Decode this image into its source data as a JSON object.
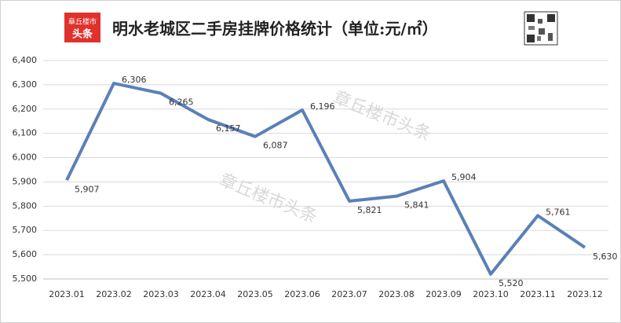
{
  "chart_data": {
    "type": "line",
    "title": "明水老城区二手房挂牌价格统计（单位:元/㎡）",
    "logo_text": [
      "章丘楼市",
      "头条"
    ],
    "watermark": "章丘楼市头条",
    "categories": [
      "2023.01",
      "2023.02",
      "2023.03",
      "2023.04",
      "2023.05",
      "2023.06",
      "2023.07",
      "2023.08",
      "2023.09",
      "2023.10",
      "2023.11",
      "2023.12"
    ],
    "values": [
      5907,
      6306,
      6265,
      6157,
      6087,
      6196,
      5821,
      5841,
      5904,
      5520,
      5761,
      5630
    ],
    "value_labels": [
      "5,907",
      "6,306",
      "6,265",
      "6,157",
      "6,087",
      "6,196",
      "5,821",
      "5,841",
      "5,904",
      "5,520",
      "5,761",
      "5,630"
    ],
    "color": "#5a80b8",
    "ylim": [
      5500,
      6400
    ],
    "yticks": [
      {
        "value": 5500,
        "label": "5,500"
      },
      {
        "value": 5600,
        "label": "5,600"
      },
      {
        "value": 5700,
        "label": "5,700"
      },
      {
        "value": 5800,
        "label": "5,800"
      },
      {
        "value": 5900,
        "label": "5,900"
      },
      {
        "value": 6000,
        "label": "6,000"
      },
      {
        "value": 6100,
        "label": "6,100"
      },
      {
        "value": 6200,
        "label": "6,200"
      },
      {
        "value": 6300,
        "label": "6,300"
      },
      {
        "value": 6400,
        "label": "6,400"
      }
    ],
    "grid": true
  }
}
